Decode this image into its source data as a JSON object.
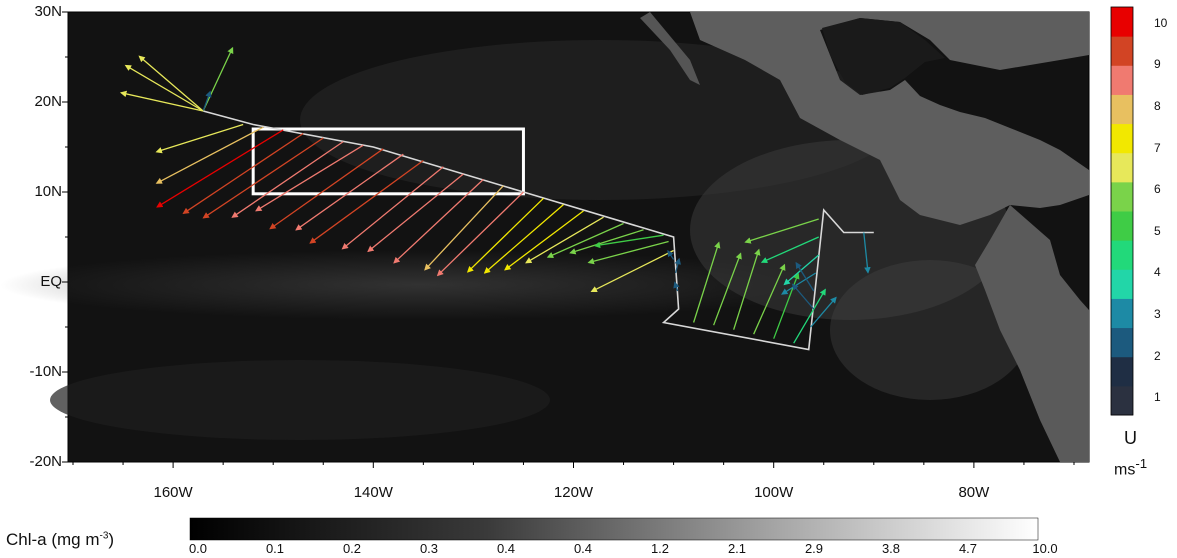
{
  "map": {
    "lat_ticks": [
      {
        "value": 30,
        "label": "30N"
      },
      {
        "value": 20,
        "label": "20N"
      },
      {
        "value": 10,
        "label": "10N"
      },
      {
        "value": 0,
        "label": "EQ"
      },
      {
        "value": -10,
        "label": "-10N"
      },
      {
        "value": -20,
        "label": "-20N"
      }
    ],
    "lon_ticks": [
      {
        "value": -160,
        "label": "160W"
      },
      {
        "value": -140,
        "label": "140W"
      },
      {
        "value": -120,
        "label": "120W"
      },
      {
        "value": -100,
        "label": "100W"
      },
      {
        "value": -80,
        "label": "80W"
      }
    ],
    "lon_range": [
      -170.5,
      -68.5
    ],
    "lat_range": [
      -20,
      30
    ],
    "study_box": {
      "lon_min": -152,
      "lon_max": -125,
      "lat_min": 9.8,
      "lat_max": 17
    },
    "cruise_track": [
      [
        -157,
        19
      ],
      [
        -152,
        17.5
      ],
      [
        -140,
        15
      ],
      [
        -125,
        10
      ],
      [
        -110,
        5
      ],
      [
        -109.5,
        -3
      ],
      [
        -111,
        -4.5
      ],
      [
        -96.5,
        -7.5
      ],
      [
        -95,
        8
      ],
      [
        -93,
        5.5
      ],
      [
        -90,
        5.5
      ]
    ],
    "wind_vectors": [
      {
        "lon": -157,
        "lat": 19,
        "u": 0.35,
        "v": 0.75,
        "speed": 6
      },
      {
        "lon": -157,
        "lat": 19,
        "u": 0.2,
        "v": 0.55,
        "speed": 2.5
      },
      {
        "lon": -157,
        "lat": 19,
        "u": -0.7,
        "v": 0.6,
        "speed": 6.5
      },
      {
        "lon": -157,
        "lat": 19,
        "u": -0.85,
        "v": 0.5,
        "speed": 6.5
      },
      {
        "lon": -157,
        "lat": 19,
        "u": -0.9,
        "v": 0.2,
        "speed": 6.5
      },
      {
        "lon": -153,
        "lat": 17.5,
        "u": -0.95,
        "v": -0.3,
        "speed": 6.5
      },
      {
        "lon": -151,
        "lat": 17.2,
        "u": -0.95,
        "v": -0.5,
        "speed": 8
      },
      {
        "lon": -149,
        "lat": 16.9,
        "u": -0.9,
        "v": -0.55,
        "speed": 10
      },
      {
        "lon": -147,
        "lat": 16.5,
        "u": -0.9,
        "v": -0.6,
        "speed": 9.5
      },
      {
        "lon": -145,
        "lat": 16,
        "u": -0.9,
        "v": -0.6,
        "speed": 9.5
      },
      {
        "lon": -143,
        "lat": 15.6,
        "u": -0.88,
        "v": -0.6,
        "speed": 9
      },
      {
        "lon": -141,
        "lat": 15.2,
        "u": -0.9,
        "v": -0.55,
        "speed": 8.5
      },
      {
        "lon": -139,
        "lat": 14.8,
        "u": -0.85,
        "v": -0.6,
        "speed": 9.5
      },
      {
        "lon": -137,
        "lat": 14.2,
        "u": -0.85,
        "v": -0.6,
        "speed": 9
      },
      {
        "lon": -135,
        "lat": 13.5,
        "u": -0.85,
        "v": -0.62,
        "speed": 9.5
      },
      {
        "lon": -133,
        "lat": 12.8,
        "u": -0.8,
        "v": -0.65,
        "speed": 9
      },
      {
        "lon": -131,
        "lat": 12,
        "u": -0.8,
        "v": -0.65,
        "speed": 8.5
      },
      {
        "lon": -129,
        "lat": 11.4,
        "u": -0.75,
        "v": -0.7,
        "speed": 8.5
      },
      {
        "lon": -127,
        "lat": 10.7,
        "u": -0.7,
        "v": -0.75,
        "speed": 8
      },
      {
        "lon": -125,
        "lat": 10,
        "u": -0.72,
        "v": -0.7,
        "speed": 8.5
      },
      {
        "lon": -123,
        "lat": 9.3,
        "u": -0.72,
        "v": -0.7,
        "speed": 7.5
      },
      {
        "lon": -121,
        "lat": 8.6,
        "u": -0.75,
        "v": -0.65,
        "speed": 7.5
      },
      {
        "lon": -119,
        "lat": 7.9,
        "u": -0.8,
        "v": -0.6,
        "speed": 7
      },
      {
        "lon": -117,
        "lat": 7.2,
        "u": -0.85,
        "v": -0.5,
        "speed": 6.5
      },
      {
        "lon": -115,
        "lat": 6.5,
        "u": -0.9,
        "v": -0.4,
        "speed": 6
      },
      {
        "lon": -113,
        "lat": 5.8,
        "u": -0.95,
        "v": -0.3,
        "speed": 5.5
      },
      {
        "lon": -111,
        "lat": 5.2,
        "u": -0.98,
        "v": -0.15,
        "speed": 5
      },
      {
        "lon": -110.5,
        "lat": 4.5,
        "u": -0.95,
        "v": -0.25,
        "speed": 6
      },
      {
        "lon": -110,
        "lat": 3.5,
        "u": -0.9,
        "v": -0.45,
        "speed": 6.5
      },
      {
        "lon": -110,
        "lat": 2.5,
        "u": -0.2,
        "v": 0.3,
        "speed": 2
      },
      {
        "lon": -109.8,
        "lat": 1,
        "u": 0.1,
        "v": 0.4,
        "speed": 2.5
      },
      {
        "lon": -109.6,
        "lat": -1,
        "u": -0.1,
        "v": 0.3,
        "speed": 2
      },
      {
        "lon": -108,
        "lat": -4.5,
        "u": 0.3,
        "v": 0.95,
        "speed": 6
      },
      {
        "lon": -106,
        "lat": -4.8,
        "u": 0.35,
        "v": 0.93,
        "speed": 5.5
      },
      {
        "lon": -104,
        "lat": -5.3,
        "u": 0.3,
        "v": 0.95,
        "speed": 6
      },
      {
        "lon": -102,
        "lat": -5.8,
        "u": 0.4,
        "v": 0.9,
        "speed": 5.5
      },
      {
        "lon": -100,
        "lat": -6.3,
        "u": 0.35,
        "v": 0.93,
        "speed": 5
      },
      {
        "lon": -98,
        "lat": -6.8,
        "u": 0.5,
        "v": 0.85,
        "speed": 4.5
      },
      {
        "lon": -95.5,
        "lat": 7,
        "u": -0.95,
        "v": -0.3,
        "speed": 5.5
      },
      {
        "lon": -95.5,
        "lat": 5,
        "u": -0.9,
        "v": -0.4,
        "speed": 4.5
      },
      {
        "lon": -95.5,
        "lat": 3,
        "u": -0.7,
        "v": -0.6,
        "speed": 3.5
      },
      {
        "lon": -95.8,
        "lat": 1,
        "u": -0.8,
        "v": -0.5,
        "speed": 3
      },
      {
        "lon": -96,
        "lat": -1,
        "u": -0.5,
        "v": 0.8,
        "speed": 2.5
      },
      {
        "lon": -96,
        "lat": -3,
        "u": -0.6,
        "v": 0.7,
        "speed": 2.5
      },
      {
        "lon": -96.3,
        "lat": -5,
        "u": 0.6,
        "v": 0.7,
        "speed": 3
      },
      {
        "lon": -91,
        "lat": 5.5,
        "u": 0.1,
        "v": -0.95,
        "speed": 3
      }
    ],
    "chl_colorbar": {
      "title": "Chl-a (mg m",
      "title_exp": "-3",
      "title_end": ")",
      "labels": [
        "0.0",
        "0.1",
        "0.2",
        "0.3",
        "0.4",
        "0.4",
        "1.2",
        "2.1",
        "2.9",
        "3.8",
        "4.7",
        "10.0"
      ]
    },
    "u_colorbar": {
      "title": "U",
      "unit": "ms",
      "unit_exp": "-1",
      "labels": [
        {
          "value": 10,
          "label": "10"
        },
        {
          "value": 9,
          "label": "9"
        },
        {
          "value": 8,
          "label": "8"
        },
        {
          "value": 7,
          "label": "7"
        },
        {
          "value": 6,
          "label": "6"
        },
        {
          "value": 5,
          "label": "5"
        },
        {
          "value": 4,
          "label": "4"
        },
        {
          "value": 3,
          "label": "3"
        },
        {
          "value": 2,
          "label": "2"
        },
        {
          "value": 1,
          "label": "1"
        }
      ],
      "colors": [
        "#2b3140",
        "#1f2e44",
        "#1c5a7e",
        "#1d8aa5",
        "#22d6a8",
        "#22d97a",
        "#3fcc46",
        "#7ad34a",
        "#e7e85a",
        "#f2e800",
        "#e8c060",
        "#f07a70",
        "#d24424",
        "#e80000"
      ]
    },
    "colors": {
      "track": "#d8d8d8",
      "box": "#ffffff",
      "ocean": "#101010"
    }
  }
}
